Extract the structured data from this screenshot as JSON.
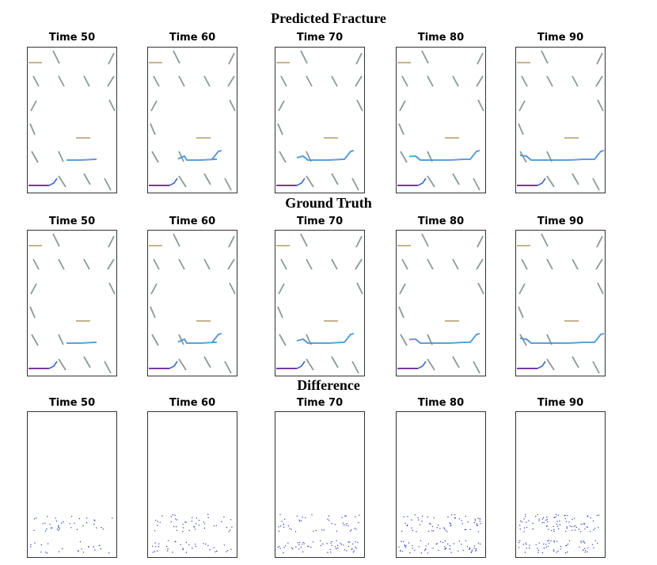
{
  "figure": {
    "rows": [
      {
        "title": "Predicted Fracture",
        "kind": "prediction",
        "panels": [
          {
            "label": "Time 50",
            "time": 50
          },
          {
            "label": "Time 60",
            "time": 60
          },
          {
            "label": "Time 70",
            "time": 70
          },
          {
            "label": "Time 80",
            "time": 80
          },
          {
            "label": "Time 90",
            "time": 90
          }
        ]
      },
      {
        "title": "Ground Truth",
        "kind": "ground-truth",
        "panels": [
          {
            "label": "Time 50",
            "time": 50
          },
          {
            "label": "Time 60",
            "time": 60
          },
          {
            "label": "Time 70",
            "time": 70
          },
          {
            "label": "Time 80",
            "time": 80
          },
          {
            "label": "Time 90",
            "time": 90
          }
        ]
      },
      {
        "title": "Difference",
        "kind": "difference",
        "panels": [
          {
            "label": "Time 50",
            "time": 50
          },
          {
            "label": "Time 60",
            "time": 60
          },
          {
            "label": "Time 70",
            "time": 70
          },
          {
            "label": "Time 80",
            "time": 80
          },
          {
            "label": "Time 90",
            "time": 90
          }
        ]
      }
    ],
    "colors": {
      "frame": "#333333",
      "preexisting_fracture": "#8a9a98",
      "horizontal_fracture": "#b09a6a",
      "propagated_fracture": "#3a6bd0",
      "propagated_highlight": "#5ec8d0",
      "injection_fracture": "#7a3a9a",
      "difference_points": "#3040c8"
    }
  }
}
